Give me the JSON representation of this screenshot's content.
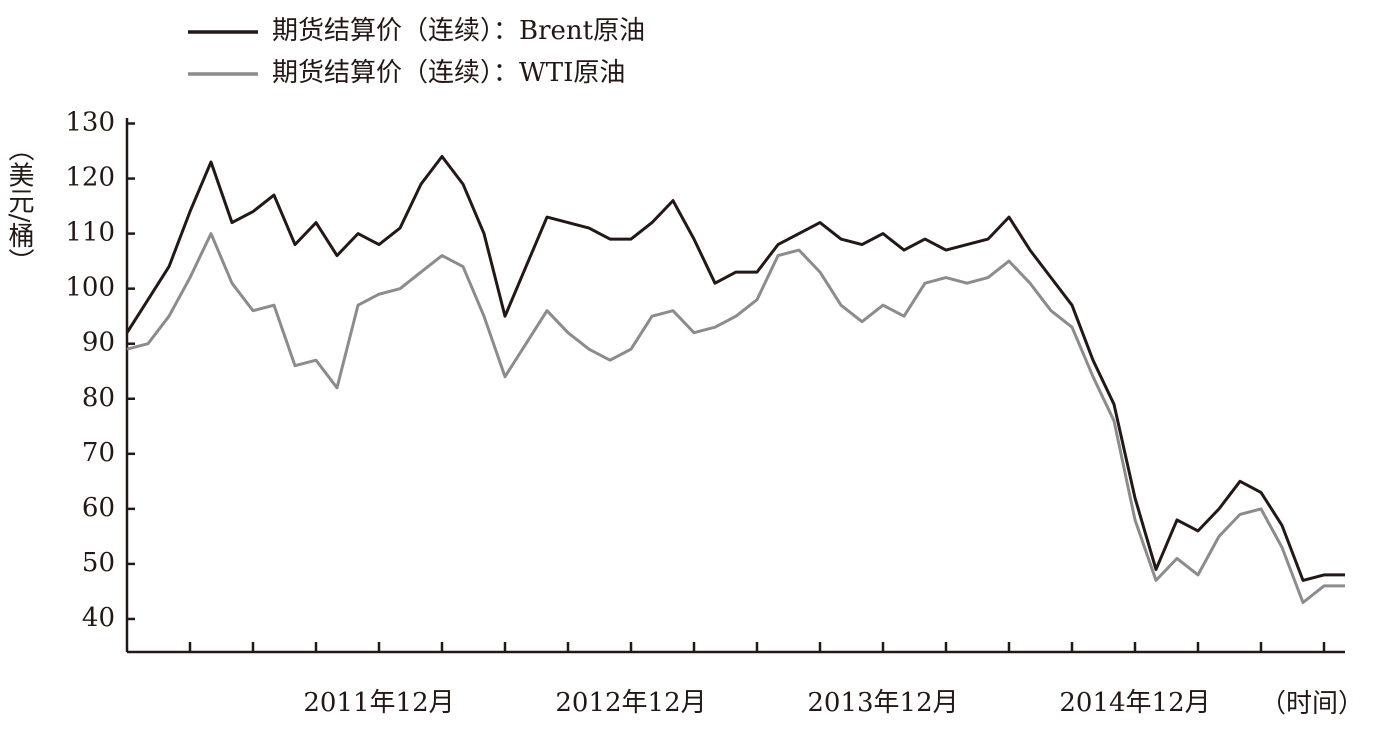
{
  "chart_data": {
    "type": "line",
    "y_label": "（美元/桶）",
    "x_label": "（时间）",
    "categories": [
      null,
      null,
      null,
      null,
      null,
      null,
      null,
      null,
      null,
      null,
      null,
      null,
      "2011年12月",
      null,
      null,
      null,
      null,
      null,
      null,
      null,
      null,
      null,
      null,
      null,
      "2012年12月",
      null,
      null,
      null,
      null,
      null,
      null,
      null,
      null,
      null,
      null,
      null,
      "2013年12月",
      null,
      null,
      null,
      null,
      null,
      null,
      null,
      null,
      null,
      null,
      null,
      "2014年12月",
      null,
      null,
      null,
      null,
      null,
      null,
      null,
      null,
      null,
      null
    ],
    "series": [
      {
        "name": "期货结算价（连续）：Brent原油",
        "color": "#231815",
        "values": [
          92,
          98,
          104,
          114,
          123,
          112,
          114,
          117,
          108,
          112,
          106,
          110,
          108,
          111,
          119,
          124,
          119,
          110,
          95,
          104,
          113,
          112,
          111,
          109,
          109,
          112,
          116,
          109,
          101,
          103,
          103,
          108,
          110,
          112,
          109,
          108,
          110,
          107,
          109,
          107,
          108,
          109,
          113,
          107,
          102,
          97,
          87,
          79,
          62,
          49,
          58,
          56,
          60,
          65,
          63,
          57,
          47,
          48,
          48
        ]
      },
      {
        "name": "期货结算价（连续）：WTI原油",
        "color": "#8c8c8c",
        "values": [
          89,
          90,
          95,
          102,
          110,
          101,
          96,
          97,
          86,
          87,
          82,
          97,
          99,
          100,
          103,
          106,
          104,
          95,
          84,
          90,
          96,
          92,
          89,
          87,
          89,
          95,
          96,
          92,
          93,
          95,
          98,
          106,
          107,
          103,
          97,
          94,
          97,
          95,
          101,
          102,
          101,
          102,
          105,
          101,
          96,
          93,
          84,
          76,
          58,
          47,
          51,
          48,
          55,
          59,
          60,
          53,
          43,
          46,
          46
        ]
      }
    ],
    "ylim": [
      34,
      131
    ],
    "yticks": [
      40,
      50,
      60,
      70,
      80,
      90,
      100,
      110,
      120,
      130
    ]
  }
}
